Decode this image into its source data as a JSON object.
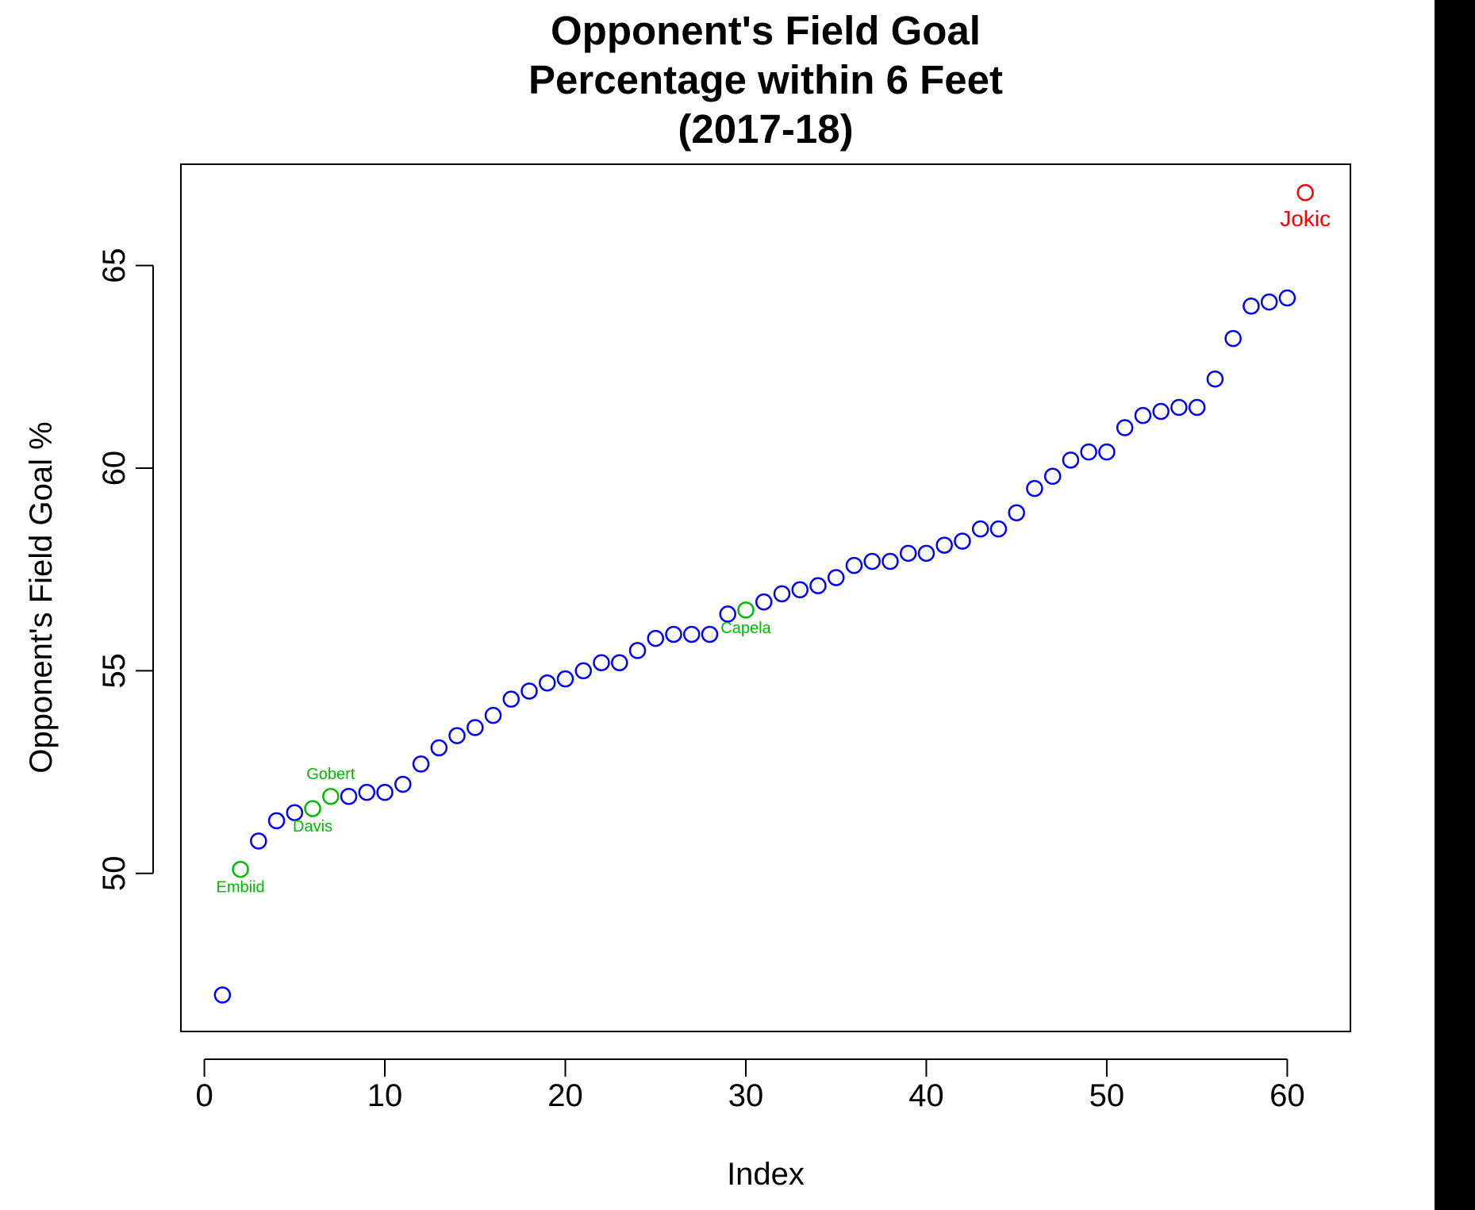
{
  "chart_data": {
    "type": "scatter",
    "title_lines": [
      "Opponent's Field Goal",
      "Percentage within 6 Feet",
      "(2017-18)"
    ],
    "xlabel": "Index",
    "ylabel": "Opponent's Field Goal %",
    "xlim": [
      -1.3,
      63.5
    ],
    "ylim": [
      46.1,
      67.5
    ],
    "x_ticks": [
      0,
      10,
      20,
      30,
      40,
      50,
      60
    ],
    "y_ticks": [
      50,
      55,
      60,
      65
    ],
    "grid": false,
    "marker": "open-circle",
    "colors": {
      "default": "#0000ff",
      "highlight": "#00bb00",
      "max": "#ff0000"
    },
    "x": [
      1,
      2,
      3,
      4,
      5,
      6,
      7,
      8,
      9,
      10,
      11,
      12,
      13,
      14,
      15,
      16,
      17,
      18,
      19,
      20,
      21,
      22,
      23,
      24,
      25,
      26,
      27,
      28,
      29,
      30,
      31,
      32,
      33,
      34,
      35,
      36,
      37,
      38,
      39,
      40,
      41,
      42,
      43,
      44,
      45,
      46,
      47,
      48,
      49,
      50,
      51,
      52,
      53,
      54,
      55,
      56,
      57,
      58,
      59,
      60,
      61
    ],
    "y": [
      47.0,
      50.1,
      50.8,
      51.3,
      51.5,
      51.6,
      51.9,
      51.9,
      52.0,
      52.0,
      52.2,
      52.7,
      53.1,
      53.4,
      53.6,
      53.9,
      54.3,
      54.5,
      54.7,
      54.8,
      55.0,
      55.2,
      55.2,
      55.5,
      55.8,
      55.9,
      55.9,
      55.9,
      56.4,
      56.5,
      56.7,
      56.9,
      57.0,
      57.1,
      57.3,
      57.6,
      57.7,
      57.7,
      57.9,
      57.9,
      58.1,
      58.2,
      58.5,
      58.5,
      58.9,
      59.5,
      59.8,
      60.2,
      60.4,
      60.4,
      61.0,
      61.3,
      61.4,
      61.5,
      61.5,
      62.2,
      63.2,
      64.0,
      64.1,
      64.2,
      66.8
    ],
    "highlights": [
      {
        "index": 2,
        "label": "Embiid",
        "color": "#00bb00",
        "label_pos": "below"
      },
      {
        "index": 6,
        "label": "Davis",
        "color": "#00bb00",
        "label_pos": "below"
      },
      {
        "index": 7,
        "label": "Gobert",
        "color": "#00bb00",
        "label_pos": "above"
      },
      {
        "index": 30,
        "label": "Capela",
        "color": "#00bb00",
        "label_pos": "below"
      },
      {
        "index": 61,
        "label": "Jokic",
        "color": "#ff0000",
        "label_pos": "below"
      }
    ]
  }
}
